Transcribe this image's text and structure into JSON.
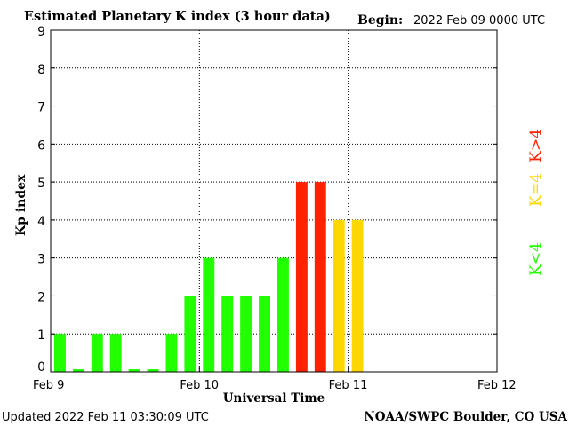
{
  "header": {
    "title": "Estimated Planetary K index (3 hour data)",
    "begin_label": "Begin:",
    "begin_value": "2022 Feb 09 0000 UTC"
  },
  "footer": {
    "updated": "Updated 2022 Feb 11 03:30:09 UTC",
    "source": "NOAA/SWPC Boulder, CO USA"
  },
  "legend": {
    "high": "K>4",
    "equal": "K=4",
    "low": "K<4"
  },
  "colors": {
    "low": "#22ff00",
    "equal": "#ffd700",
    "high": "#ff2200",
    "axis": "#000000",
    "grid": "#000000"
  },
  "chart_data": {
    "type": "bar",
    "title": "Estimated Planetary K index (3 hour data)",
    "xlabel": "Universal Time",
    "ylabel": "Kp index",
    "ylim": [
      0,
      9
    ],
    "yticks": [
      0,
      1,
      2,
      3,
      4,
      5,
      6,
      7,
      8,
      9
    ],
    "xticks": [
      "Feb 9",
      "Feb 10",
      "Feb 11",
      "Feb 12"
    ],
    "interval_hours": 3,
    "grid": true,
    "legend_position": "right",
    "values": [
      1.0,
      0.07,
      1.0,
      1.0,
      0.07,
      0.07,
      1.0,
      2.0,
      3.0,
      2.0,
      2.0,
      2.0,
      3.0,
      5.0,
      5.0,
      4.0,
      4.0
    ]
  }
}
